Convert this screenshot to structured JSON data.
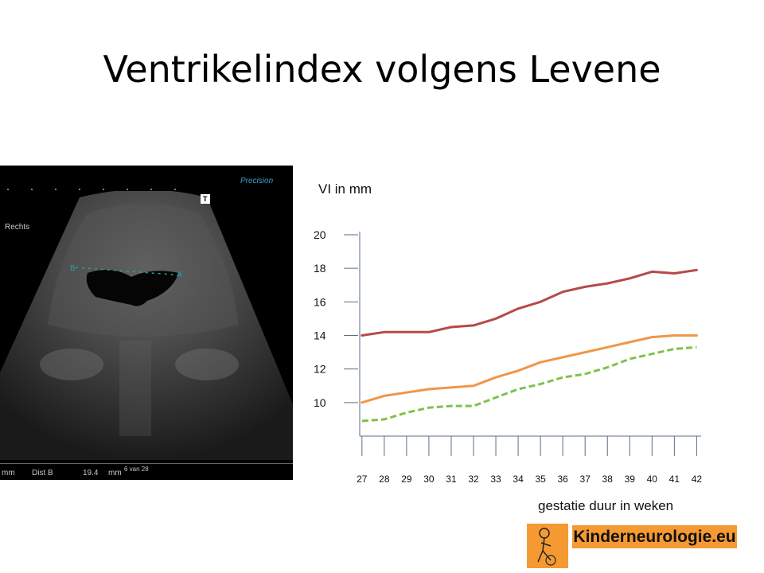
{
  "slide": {
    "title": "Ventrikelindex volgens Levene"
  },
  "ultrasound": {
    "side_label": "Rechts",
    "brand_text": "Precision",
    "bottom_left": "mm",
    "bottom_dist": "Dist B",
    "bottom_value": "19.4",
    "bottom_unit": "mm",
    "frame_counter": "6 van 28",
    "marker_b": "B",
    "marker_a": "A",
    "marker_t": "T"
  },
  "logo": {
    "text": "Kinderneurologie.eu"
  },
  "colors": {
    "upper": "#b54a4a",
    "middle": "#f0964a",
    "lower": "#7fc24a",
    "axis": "#5a6e8a"
  },
  "chart_data": {
    "type": "line",
    "ylabel": "VI in mm",
    "xlabel": "gestatie duur in weken",
    "x": [
      27,
      28,
      29,
      30,
      31,
      32,
      33,
      34,
      35,
      36,
      37,
      38,
      39,
      40,
      41,
      42
    ],
    "x_tick_labels": [
      "27",
      "28",
      "29",
      "30",
      "31",
      "32",
      "33",
      "34",
      "35",
      "36",
      "37",
      "38",
      "39",
      "40",
      "41",
      "42"
    ],
    "y_tick_labels": [
      "10",
      "12",
      "14",
      "16",
      "18",
      "20"
    ],
    "y_ticks": [
      10,
      12,
      14,
      16,
      18,
      20
    ],
    "ylim": [
      8,
      20
    ],
    "xlim": [
      26.9,
      42.2
    ],
    "series": [
      {
        "style": "solid",
        "color": "#b54a4a",
        "values": [
          14.0,
          14.2,
          14.2,
          14.2,
          14.5,
          14.6,
          15.0,
          15.6,
          16.0,
          16.6,
          16.9,
          17.1,
          17.4,
          17.8,
          17.7,
          17.9
        ]
      },
      {
        "style": "solid",
        "color": "#f0964a",
        "values": [
          10.0,
          10.4,
          10.6,
          10.8,
          10.9,
          11.0,
          11.5,
          11.9,
          12.4,
          12.7,
          13.0,
          13.3,
          13.6,
          13.9,
          14.0,
          14.0
        ]
      },
      {
        "style": "dashed",
        "color": "#7fc24a",
        "values": [
          8.9,
          9.0,
          9.4,
          9.7,
          9.8,
          9.8,
          10.3,
          10.8,
          11.1,
          11.5,
          11.7,
          12.1,
          12.6,
          12.9,
          13.2,
          13.3
        ]
      }
    ]
  }
}
